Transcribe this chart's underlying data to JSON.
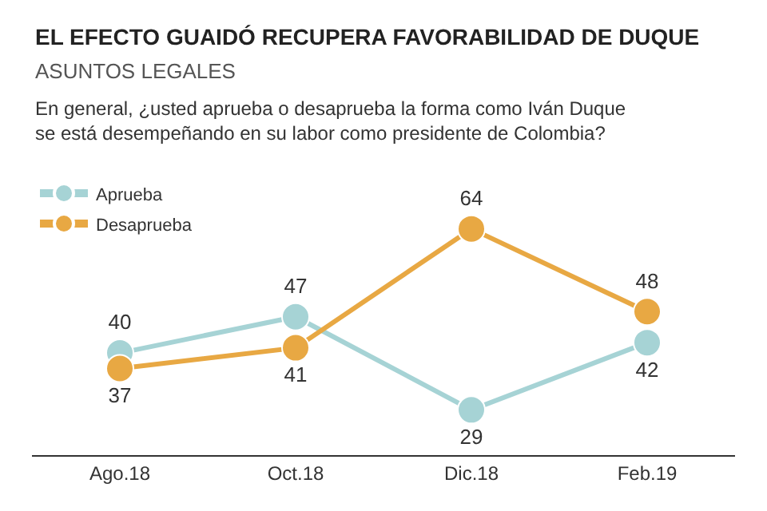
{
  "chart_data": {
    "type": "line",
    "title": "EL EFECTO GUAIDÓ RECUPERA FAVORABILIDAD DE DUQUE",
    "subtitle": "ASUNTOS LEGALES",
    "annotations": [
      "En general, ¿usted aprueba o desaprueba la forma como Iván Duque se está desempeñando en su labor como presidente de Colombia?"
    ],
    "categories": [
      "Ago.18",
      "Oct.18",
      "Dic.18",
      "Feb.19"
    ],
    "series": [
      {
        "name": "Aprueba",
        "color": "#a6d3d5",
        "values": [
          40,
          47,
          29,
          42
        ]
      },
      {
        "name": "Desaprueba",
        "color": "#e8a843",
        "values": [
          37,
          41,
          64,
          48
        ]
      }
    ],
    "data_labels": true,
    "legend": "top left",
    "marker": "circle",
    "line_style": "solid"
  }
}
